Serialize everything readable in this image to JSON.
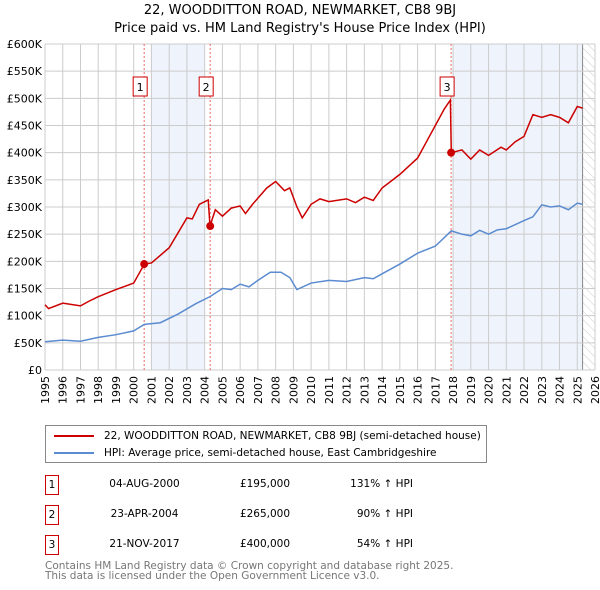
{
  "chart_data": {
    "type": "line",
    "title": "22, WOODDITTON ROAD, NEWMARKET, CB8 9BJ",
    "subtitle": "Price paid vs. HM Land Registry's House Price Index (HPI)",
    "xlim": [
      1995,
      2026
    ],
    "ylim": [
      0,
      600000
    ],
    "x_ticks": [
      "1995",
      "1996",
      "1997",
      "1998",
      "1999",
      "2000",
      "2001",
      "2002",
      "2003",
      "2004",
      "2005",
      "2006",
      "2007",
      "2008",
      "2009",
      "2010",
      "2011",
      "2012",
      "2013",
      "2014",
      "2015",
      "2016",
      "2017",
      "2018",
      "2019",
      "2020",
      "2021",
      "2022",
      "2023",
      "2024",
      "2025",
      "2026"
    ],
    "y_ticks": [
      "£0",
      "£50K",
      "£100K",
      "£150K",
      "£200K",
      "£250K",
      "£300K",
      "£350K",
      "£400K",
      "£450K",
      "£500K",
      "£550K",
      "£600K"
    ],
    "grid": true,
    "shaded_ranges": [
      [
        2001,
        2004
      ],
      [
        2018,
        2025.3
      ]
    ],
    "series": [
      {
        "name": "22, WOODDITTON ROAD, NEWMARKET, CB8 9BJ (semi-detached house)",
        "color": "#cc0000",
        "x": [
          1995,
          1995.2,
          1996,
          1997,
          1997.5,
          1998,
          1999,
          2000,
          2000.6,
          2001,
          2002,
          2003,
          2003.3,
          2003.7,
          2004.2,
          2004.3,
          2004.6,
          2005,
          2005.5,
          2006,
          2006.3,
          2006.7,
          2007.5,
          2008,
          2008.5,
          2008.8,
          2009.2,
          2009.5,
          2010,
          2010.5,
          2011,
          2012,
          2012.5,
          2013,
          2013.5,
          2014,
          2015,
          2016,
          2016.5,
          2017.5,
          2017.85,
          2017.9,
          2018.5,
          2019,
          2019.5,
          2020,
          2020.7,
          2021,
          2021.5,
          2022,
          2022.5,
          2023,
          2023.5,
          2024,
          2024.5,
          2025,
          2025.3
        ],
        "y": [
          120000,
          113000,
          123000,
          118000,
          127000,
          135000,
          148000,
          160000,
          195000,
          197000,
          225000,
          280000,
          278000,
          305000,
          313000,
          265000,
          295000,
          283000,
          298000,
          302000,
          288000,
          305000,
          335000,
          347000,
          330000,
          335000,
          300000,
          280000,
          305000,
          315000,
          310000,
          315000,
          308000,
          318000,
          312000,
          335000,
          360000,
          390000,
          420000,
          480000,
          497000,
          400000,
          405000,
          388000,
          405000,
          395000,
          410000,
          405000,
          420000,
          430000,
          470000,
          465000,
          470000,
          465000,
          455000,
          485000,
          482000
        ]
      },
      {
        "name": "HPI: Average price, semi-detached house, East Cambridgeshire",
        "color": "#5b8bd0",
        "x": [
          1995,
          1996,
          1997,
          1998,
          1999,
          2000,
          2000.6,
          2001.5,
          2002.5,
          2003.5,
          2004.3,
          2005,
          2005.5,
          2006,
          2006.5,
          2007,
          2007.7,
          2008.3,
          2008.8,
          2009.2,
          2010,
          2011,
          2012,
          2013,
          2013.5,
          2014,
          2015,
          2016,
          2017,
          2017.9,
          2018.5,
          2019,
          2019.5,
          2020,
          2020.5,
          2021,
          2022,
          2022.5,
          2023,
          2023.5,
          2024,
          2024.5,
          2025,
          2025.3
        ],
        "y": [
          52000,
          55000,
          53000,
          60000,
          65000,
          72000,
          84000,
          87000,
          103000,
          122000,
          135000,
          150000,
          148000,
          158000,
          153000,
          165000,
          180000,
          180000,
          170000,
          148000,
          160000,
          165000,
          163000,
          170000,
          168000,
          177000,
          195000,
          215000,
          228000,
          256000,
          250000,
          247000,
          257000,
          250000,
          258000,
          260000,
          275000,
          282000,
          304000,
          300000,
          302000,
          295000,
          307000,
          305000
        ]
      }
    ],
    "sales": [
      {
        "label": "1",
        "x": 2000.59,
        "y": 195000,
        "date": "04-AUG-2000",
        "price": "£195,000",
        "hpi": "131% ↑ HPI"
      },
      {
        "label": "2",
        "x": 2004.31,
        "y": 265000,
        "date": "23-APR-2004",
        "price": "£265,000",
        "hpi": "90% ↑ HPI"
      },
      {
        "label": "3",
        "x": 2017.89,
        "y": 400000,
        "date": "21-NOV-2017",
        "price": "£400,000",
        "hpi": "54% ↑ HPI"
      }
    ]
  },
  "footer": [
    "Contains HM Land Registry data © Crown copyright and database right 2025.",
    "This data is licensed under the Open Government Licence v3.0."
  ]
}
